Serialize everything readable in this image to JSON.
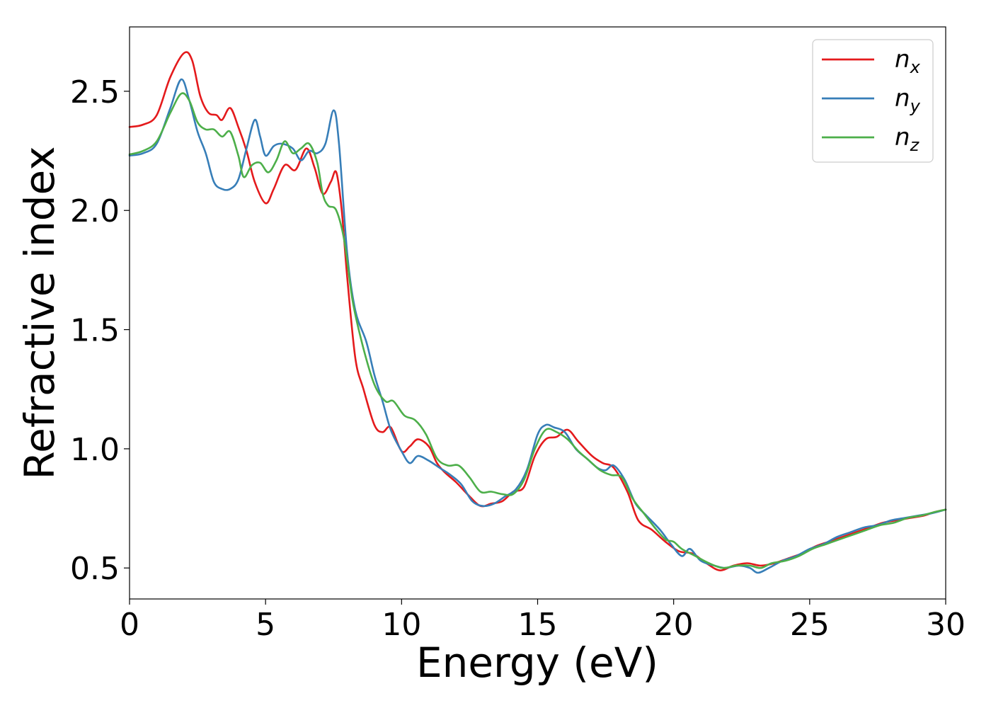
{
  "chart_data": {
    "type": "line",
    "title": "",
    "xlabel": "Energy (eV)",
    "ylabel": "Refractive index",
    "xlim": [
      0,
      30
    ],
    "ylim": [
      0.37,
      2.77
    ],
    "xticks": [
      0,
      5,
      10,
      15,
      20,
      25,
      30
    ],
    "xtick_labels": [
      "0",
      "5",
      "10",
      "15",
      "20",
      "25",
      "30"
    ],
    "yticks": [
      0.5,
      1.0,
      1.5,
      2.0,
      2.5
    ],
    "ytick_labels": [
      "0.5",
      "1.0",
      "1.5",
      "2.0",
      "2.5"
    ],
    "grid": false,
    "legend_position": "top-right",
    "series": [
      {
        "name": "n",
        "subscript": "x",
        "color": "#e41a1c",
        "points": [
          [
            0,
            2.35
          ],
          [
            0.5,
            2.36
          ],
          [
            1.0,
            2.4
          ],
          [
            1.5,
            2.56
          ],
          [
            2.0,
            2.66
          ],
          [
            2.3,
            2.63
          ],
          [
            2.6,
            2.48
          ],
          [
            2.9,
            2.41
          ],
          [
            3.2,
            2.4
          ],
          [
            3.4,
            2.38
          ],
          [
            3.7,
            2.43
          ],
          [
            4.0,
            2.35
          ],
          [
            4.3,
            2.25
          ],
          [
            4.6,
            2.12
          ],
          [
            5.0,
            2.03
          ],
          [
            5.3,
            2.09
          ],
          [
            5.7,
            2.19
          ],
          [
            6.1,
            2.17
          ],
          [
            6.5,
            2.26
          ],
          [
            6.8,
            2.18
          ],
          [
            7.1,
            2.07
          ],
          [
            7.4,
            2.12
          ],
          [
            7.6,
            2.16
          ],
          [
            7.8,
            2.0
          ],
          [
            8.0,
            1.72
          ],
          [
            8.3,
            1.38
          ],
          [
            8.6,
            1.25
          ],
          [
            9.0,
            1.1
          ],
          [
            9.3,
            1.07
          ],
          [
            9.6,
            1.09
          ],
          [
            10.0,
            0.99
          ],
          [
            10.3,
            1.01
          ],
          [
            10.6,
            1.04
          ],
          [
            11.0,
            1.01
          ],
          [
            11.3,
            0.94
          ],
          [
            11.6,
            0.9
          ],
          [
            12.0,
            0.86
          ],
          [
            12.5,
            0.8
          ],
          [
            12.9,
            0.76
          ],
          [
            13.3,
            0.77
          ],
          [
            13.7,
            0.78
          ],
          [
            14.1,
            0.82
          ],
          [
            14.5,
            0.84
          ],
          [
            14.9,
            0.97
          ],
          [
            15.3,
            1.04
          ],
          [
            15.7,
            1.05
          ],
          [
            16.1,
            1.08
          ],
          [
            16.5,
            1.03
          ],
          [
            17.0,
            0.97
          ],
          [
            17.4,
            0.94
          ],
          [
            17.8,
            0.92
          ],
          [
            18.3,
            0.82
          ],
          [
            18.7,
            0.7
          ],
          [
            19.2,
            0.66
          ],
          [
            19.7,
            0.61
          ],
          [
            20.2,
            0.57
          ],
          [
            20.7,
            0.56
          ],
          [
            21.2,
            0.52
          ],
          [
            21.7,
            0.49
          ],
          [
            22.2,
            0.51
          ],
          [
            22.7,
            0.52
          ],
          [
            23.2,
            0.51
          ],
          [
            23.7,
            0.52
          ],
          [
            24.2,
            0.54
          ],
          [
            24.7,
            0.56
          ],
          [
            25.2,
            0.59
          ],
          [
            25.7,
            0.61
          ],
          [
            26.2,
            0.63
          ],
          [
            26.7,
            0.65
          ],
          [
            27.2,
            0.67
          ],
          [
            27.7,
            0.69
          ],
          [
            28.2,
            0.7
          ],
          [
            28.7,
            0.71
          ],
          [
            29.2,
            0.72
          ],
          [
            29.6,
            0.735
          ],
          [
            30.0,
            0.745
          ]
        ]
      },
      {
        "name": "n",
        "subscript": "y",
        "color": "#377eb8",
        "points": [
          [
            0,
            2.23
          ],
          [
            0.5,
            2.24
          ],
          [
            1.0,
            2.28
          ],
          [
            1.5,
            2.43
          ],
          [
            1.9,
            2.55
          ],
          [
            2.2,
            2.46
          ],
          [
            2.5,
            2.33
          ],
          [
            2.8,
            2.24
          ],
          [
            3.1,
            2.12
          ],
          [
            3.4,
            2.09
          ],
          [
            3.7,
            2.09
          ],
          [
            4.0,
            2.13
          ],
          [
            4.3,
            2.26
          ],
          [
            4.6,
            2.38
          ],
          [
            4.8,
            2.31
          ],
          [
            5.0,
            2.23
          ],
          [
            5.3,
            2.27
          ],
          [
            5.6,
            2.28
          ],
          [
            6.0,
            2.26
          ],
          [
            6.3,
            2.21
          ],
          [
            6.6,
            2.25
          ],
          [
            6.9,
            2.24
          ],
          [
            7.2,
            2.28
          ],
          [
            7.5,
            2.42
          ],
          [
            7.7,
            2.28
          ],
          [
            8.0,
            1.82
          ],
          [
            8.3,
            1.58
          ],
          [
            8.7,
            1.45
          ],
          [
            9.0,
            1.31
          ],
          [
            9.3,
            1.2
          ],
          [
            9.6,
            1.08
          ],
          [
            10.0,
            0.99
          ],
          [
            10.3,
            0.94
          ],
          [
            10.6,
            0.97
          ],
          [
            11.0,
            0.95
          ],
          [
            11.4,
            0.92
          ],
          [
            11.8,
            0.89
          ],
          [
            12.2,
            0.85
          ],
          [
            12.6,
            0.78
          ],
          [
            13.0,
            0.76
          ],
          [
            13.4,
            0.77
          ],
          [
            13.8,
            0.8
          ],
          [
            14.2,
            0.83
          ],
          [
            14.6,
            0.91
          ],
          [
            15.0,
            1.06
          ],
          [
            15.3,
            1.1
          ],
          [
            15.6,
            1.09
          ],
          [
            16.0,
            1.07
          ],
          [
            16.4,
            1.0
          ],
          [
            16.8,
            0.96
          ],
          [
            17.2,
            0.92
          ],
          [
            17.5,
            0.91
          ],
          [
            17.8,
            0.93
          ],
          [
            18.2,
            0.87
          ],
          [
            18.6,
            0.77
          ],
          [
            19.0,
            0.72
          ],
          [
            19.5,
            0.66
          ],
          [
            19.9,
            0.6
          ],
          [
            20.3,
            0.55
          ],
          [
            20.6,
            0.58
          ],
          [
            21.0,
            0.53
          ],
          [
            21.5,
            0.51
          ],
          [
            21.9,
            0.5
          ],
          [
            22.4,
            0.51
          ],
          [
            22.8,
            0.5
          ],
          [
            23.1,
            0.48
          ],
          [
            23.5,
            0.5
          ],
          [
            24.0,
            0.53
          ],
          [
            24.5,
            0.55
          ],
          [
            25.0,
            0.58
          ],
          [
            25.5,
            0.6
          ],
          [
            26.0,
            0.63
          ],
          [
            26.5,
            0.65
          ],
          [
            27.0,
            0.67
          ],
          [
            27.5,
            0.68
          ],
          [
            28.0,
            0.7
          ],
          [
            28.5,
            0.71
          ],
          [
            29.0,
            0.72
          ],
          [
            29.5,
            0.73
          ],
          [
            30.0,
            0.745
          ]
        ]
      },
      {
        "name": "n",
        "subscript": "z",
        "color": "#4daf4a",
        "points": [
          [
            0,
            2.235
          ],
          [
            0.5,
            2.25
          ],
          [
            1.0,
            2.29
          ],
          [
            1.5,
            2.41
          ],
          [
            1.9,
            2.49
          ],
          [
            2.2,
            2.46
          ],
          [
            2.5,
            2.37
          ],
          [
            2.8,
            2.34
          ],
          [
            3.1,
            2.34
          ],
          [
            3.4,
            2.31
          ],
          [
            3.7,
            2.33
          ],
          [
            4.0,
            2.23
          ],
          [
            4.2,
            2.14
          ],
          [
            4.5,
            2.19
          ],
          [
            4.8,
            2.2
          ],
          [
            5.1,
            2.16
          ],
          [
            5.4,
            2.21
          ],
          [
            5.7,
            2.29
          ],
          [
            6.0,
            2.24
          ],
          [
            6.3,
            2.26
          ],
          [
            6.6,
            2.28
          ],
          [
            6.9,
            2.2
          ],
          [
            7.1,
            2.07
          ],
          [
            7.3,
            2.02
          ],
          [
            7.6,
            2.0
          ],
          [
            7.9,
            1.87
          ],
          [
            8.2,
            1.62
          ],
          [
            8.6,
            1.42
          ],
          [
            9.0,
            1.27
          ],
          [
            9.4,
            1.2
          ],
          [
            9.7,
            1.2
          ],
          [
            10.1,
            1.14
          ],
          [
            10.5,
            1.12
          ],
          [
            10.9,
            1.06
          ],
          [
            11.3,
            0.96
          ],
          [
            11.7,
            0.93
          ],
          [
            12.1,
            0.93
          ],
          [
            12.5,
            0.88
          ],
          [
            12.9,
            0.82
          ],
          [
            13.3,
            0.82
          ],
          [
            13.7,
            0.81
          ],
          [
            14.1,
            0.81
          ],
          [
            14.5,
            0.87
          ],
          [
            14.9,
            1.0
          ],
          [
            15.3,
            1.08
          ],
          [
            15.7,
            1.07
          ],
          [
            16.1,
            1.04
          ],
          [
            16.5,
            0.99
          ],
          [
            16.9,
            0.95
          ],
          [
            17.3,
            0.91
          ],
          [
            17.7,
            0.89
          ],
          [
            18.1,
            0.88
          ],
          [
            18.5,
            0.79
          ],
          [
            18.9,
            0.73
          ],
          [
            19.3,
            0.67
          ],
          [
            19.7,
            0.62
          ],
          [
            20.0,
            0.61
          ],
          [
            20.3,
            0.58
          ],
          [
            20.8,
            0.55
          ],
          [
            21.3,
            0.52
          ],
          [
            21.8,
            0.5
          ],
          [
            22.3,
            0.51
          ],
          [
            22.8,
            0.51
          ],
          [
            23.2,
            0.5
          ],
          [
            23.6,
            0.52
          ],
          [
            24.1,
            0.53
          ],
          [
            24.6,
            0.55
          ],
          [
            25.1,
            0.58
          ],
          [
            25.6,
            0.6
          ],
          [
            26.1,
            0.62
          ],
          [
            26.6,
            0.64
          ],
          [
            27.1,
            0.66
          ],
          [
            27.6,
            0.68
          ],
          [
            28.1,
            0.69
          ],
          [
            28.6,
            0.71
          ],
          [
            29.1,
            0.72
          ],
          [
            29.6,
            0.735
          ],
          [
            30.0,
            0.745
          ]
        ]
      }
    ]
  }
}
